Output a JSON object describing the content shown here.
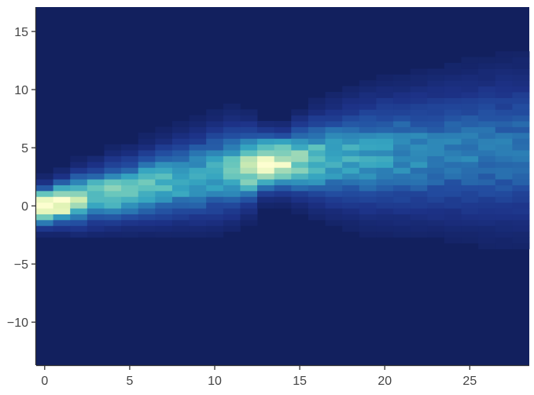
{
  "chart_data": {
    "type": "heatmap",
    "title": "",
    "xlabel": "",
    "ylabel": "",
    "xlim": [
      -0.5,
      28.5
    ],
    "ylim": [
      -13.7,
      17.1
    ],
    "bin_width_y": 0.5,
    "grid": false,
    "legend": "none",
    "colormap": [
      "#12205e",
      "#1d3287",
      "#234da0",
      "#2a76b2",
      "#35a4c0",
      "#62c4bd",
      "#a0d9b7",
      "#dbf1b1",
      "#fdfed0"
    ],
    "x_ticks": [
      0,
      5,
      10,
      15,
      20,
      25
    ],
    "y_ticks": [
      -10,
      -5,
      0,
      5,
      10,
      15
    ],
    "x_tick_labels": [
      "0",
      "5",
      "10",
      "15",
      "20",
      "25"
    ],
    "y_tick_labels": [
      "−10",
      "−5",
      "0",
      "5",
      "10",
      "15"
    ],
    "columns": {
      "x": [
        0,
        1,
        2,
        3,
        4,
        5,
        6,
        7,
        8,
        9,
        10,
        11,
        12,
        13,
        14,
        15,
        16,
        17,
        18,
        19,
        20,
        21,
        22,
        23,
        24,
        25,
        26,
        27,
        28
      ],
      "center_y": [
        0,
        0.3,
        0.6,
        0.9,
        1.2,
        1.4,
        1.7,
        2.0,
        2.2,
        2.5,
        2.8,
        3.1,
        3.4,
        3.7,
        3.8,
        3.9,
        4.0,
        4.1,
        4.2,
        4.3,
        4.4,
        4.4,
        4.5,
        4.5,
        4.6,
        4.6,
        4.7,
        4.7,
        4.8
      ],
      "spread": [
        0.9,
        1.0,
        1.2,
        1.3,
        1.4,
        1.5,
        1.6,
        1.7,
        1.8,
        1.9,
        2.0,
        2.0,
        1.7,
        1.3,
        1.3,
        1.6,
        1.9,
        2.1,
        2.3,
        2.5,
        2.6,
        2.7,
        2.8,
        2.9,
        3.0,
        3.1,
        3.2,
        3.3,
        3.4
      ],
      "peak_intensity": [
        0.97,
        1.0,
        0.72,
        0.62,
        0.58,
        0.54,
        0.52,
        0.5,
        0.48,
        0.47,
        0.47,
        0.55,
        0.78,
        0.96,
        0.88,
        0.66,
        0.55,
        0.5,
        0.45,
        0.42,
        0.39,
        0.37,
        0.35,
        0.33,
        0.32,
        0.31,
        0.3,
        0.29,
        0.28
      ]
    }
  }
}
